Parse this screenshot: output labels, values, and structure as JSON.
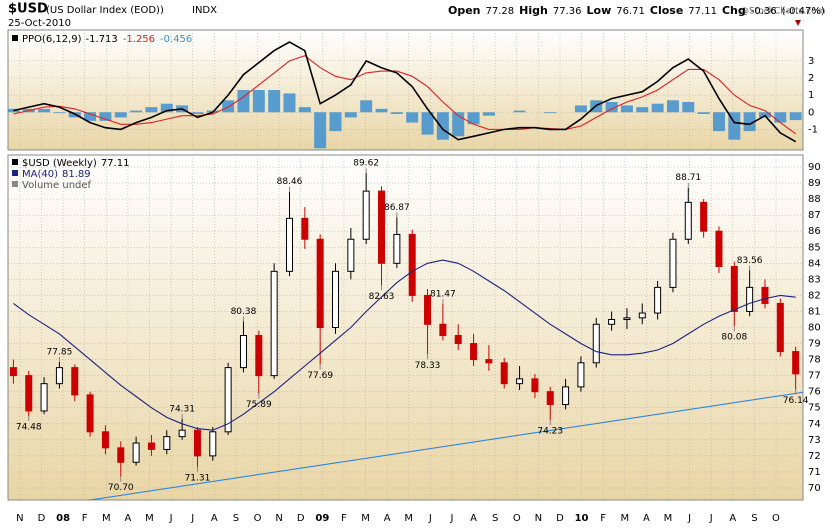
{
  "header": {
    "symbol": "$USD",
    "name": "(US Dollar Index (EOD))",
    "exchange": "INDX",
    "date": "25-Oct-2010",
    "watermark": "@StockCharts.com",
    "quote": [
      {
        "label": "Open",
        "value": 77.28
      },
      {
        "label": "High",
        "value": 77.36
      },
      {
        "label": "Low",
        "value": 76.71
      },
      {
        "label": "Close",
        "value": 77.11
      }
    ],
    "change": {
      "label": "Chg",
      "value": -0.36,
      "percent": {
        "value": -0.47,
        "label": "(-0.47%)"
      }
    }
  },
  "chart_data": [
    {
      "type": "candlestick",
      "legend": "$USD (Weekly)",
      "volume_legend": "Volume undef",
      "up_color": "#000000",
      "down_color": "#cc0000",
      "x": [
        -0.3,
        0.41,
        1.12,
        1.83,
        2.54,
        3.25,
        3.96,
        4.67,
        5.38,
        6.09,
        6.8,
        7.51,
        8.22,
        8.93,
        9.64,
        10.35,
        11.06,
        11.77,
        12.48,
        13.19,
        13.9,
        14.61,
        15.32,
        16.03,
        16.74,
        17.45,
        18.16,
        18.87,
        19.58,
        20.29,
        21,
        21.71,
        22.42,
        23.13,
        23.84,
        24.55,
        25.26,
        25.97,
        26.68,
        27.39,
        28.1,
        28.81,
        29.52,
        30.23,
        30.94,
        31.65,
        32.36,
        33.07,
        33.78,
        34.49,
        35.2,
        35.91
      ],
      "open": [
        77.5,
        77.0,
        74.8,
        76.5,
        77.5,
        75.8,
        73.5,
        72.5,
        71.6,
        72.8,
        72.4,
        73.2,
        73.6,
        72.0,
        73.5,
        77.5,
        79.5,
        77.0,
        83.5,
        86.8,
        85.5,
        80.0,
        83.5,
        85.5,
        88.5,
        84.0,
        85.8,
        82.0,
        80.2,
        79.5,
        79.0,
        78.0,
        77.8,
        76.5,
        76.8,
        76.0,
        75.2,
        76.3,
        77.8,
        80.2,
        80.5,
        80.6,
        80.9,
        82.5,
        85.5,
        87.8,
        86.0,
        83.8,
        81.0,
        82.5,
        81.5,
        78.5
      ],
      "high": [
        78.0,
        77.3,
        76.9,
        77.85,
        77.7,
        76.0,
        73.9,
        72.9,
        73.2,
        73.3,
        73.6,
        74.31,
        73.8,
        73.8,
        77.8,
        80.38,
        79.8,
        84.0,
        88.46,
        87.5,
        85.8,
        84.0,
        86.2,
        89.62,
        88.8,
        86.87,
        86.1,
        82.4,
        81.47,
        80.2,
        79.6,
        78.9,
        78.1,
        77.6,
        77.1,
        76.3,
        76.8,
        78.2,
        80.6,
        81.0,
        81.2,
        81.5,
        82.9,
        85.9,
        88.71,
        88.0,
        86.3,
        84.1,
        83.56,
        83.0,
        81.8,
        78.8
      ],
      "low": [
        76.5,
        74.48,
        74.6,
        76.2,
        75.4,
        73.2,
        72.1,
        70.7,
        71.4,
        72.0,
        72.1,
        73.0,
        71.31,
        71.7,
        73.3,
        77.2,
        75.89,
        76.8,
        83.2,
        84.9,
        77.69,
        79.6,
        83.0,
        85.2,
        82.63,
        83.7,
        81.6,
        78.33,
        79.2,
        78.6,
        77.6,
        77.3,
        76.2,
        76.1,
        75.6,
        74.23,
        74.9,
        76.0,
        77.5,
        79.8,
        79.9,
        80.2,
        80.5,
        82.2,
        85.2,
        85.6,
        83.4,
        80.08,
        80.7,
        81.2,
        78.2,
        76.14
      ],
      "close": [
        77.0,
        74.8,
        76.5,
        77.5,
        75.8,
        73.5,
        72.5,
        71.6,
        72.8,
        72.4,
        73.2,
        73.6,
        72.0,
        73.5,
        77.5,
        79.5,
        77.0,
        83.5,
        86.8,
        85.5,
        80.0,
        83.5,
        85.5,
        88.5,
        84.0,
        85.8,
        82.0,
        80.2,
        79.5,
        79.0,
        78.0,
        77.8,
        76.5,
        76.8,
        76.0,
        75.2,
        76.3,
        77.8,
        80.2,
        80.5,
        80.6,
        80.9,
        82.5,
        85.5,
        87.8,
        86.0,
        83.8,
        81.0,
        82.5,
        81.5,
        78.5,
        77.11
      ],
      "series": [
        {
          "name": "MA(40)",
          "color": "#1a237e",
          "values": [
            81.5,
            80.8,
            80.2,
            79.6,
            78.8,
            78.0,
            77.2,
            76.4,
            75.7,
            75.0,
            74.4,
            74.0,
            73.7,
            73.6,
            74.0,
            74.6,
            75.3,
            76.0,
            76.8,
            77.6,
            78.4,
            79.2,
            80.0,
            81.0,
            81.9,
            82.8,
            83.5,
            84.0,
            84.2,
            84.0,
            83.5,
            82.9,
            82.3,
            81.6,
            80.9,
            80.2,
            79.6,
            79.0,
            78.5,
            78.3,
            78.3,
            78.4,
            78.6,
            79.0,
            79.6,
            80.2,
            80.7,
            81.1,
            81.5,
            81.8,
            82.0,
            81.89
          ]
        }
      ],
      "trendline": {
        "x": [
          3.0,
          36.25
        ],
        "values": [
          69.2,
          75.96
        ],
        "color": "#2e86de"
      },
      "annotations": [
        {
          "x": 0.41,
          "value": 74.48,
          "position": "below"
        },
        {
          "x": 1.83,
          "value": 77.85,
          "position": "above"
        },
        {
          "x": 4.67,
          "value": 70.7,
          "label": "70.70",
          "position": "below"
        },
        {
          "x": 7.51,
          "value": 74.31,
          "position": "above"
        },
        {
          "x": 8.22,
          "value": 71.31,
          "position": "below"
        },
        {
          "x": 10.35,
          "value": 80.38,
          "position": "above"
        },
        {
          "x": 11.06,
          "value": 75.89,
          "position": "below"
        },
        {
          "x": 12.48,
          "value": 88.46,
          "position": "above"
        },
        {
          "x": 13.9,
          "value": 77.69,
          "position": "below"
        },
        {
          "x": 16.03,
          "value": 89.62,
          "position": "above"
        },
        {
          "x": 16.74,
          "value": 82.63,
          "position": "below"
        },
        {
          "x": 17.45,
          "value": 86.87,
          "position": "above"
        },
        {
          "x": 18.87,
          "value": 78.33,
          "position": "below"
        },
        {
          "x": 19.58,
          "value": 81.47,
          "position": "above"
        },
        {
          "x": 24.55,
          "value": 74.23,
          "position": "below"
        },
        {
          "x": 30.94,
          "value": 88.71,
          "position": "above"
        },
        {
          "x": 33.07,
          "value": 80.08,
          "position": "below"
        },
        {
          "x": 33.78,
          "value": 83.56,
          "position": "above"
        },
        {
          "x": 35.91,
          "value": 76.14,
          "position": "below"
        }
      ],
      "xlim": [
        -0.55,
        36.25
      ],
      "ylim": [
        69.25,
        90.75
      ],
      "yticks": [
        70,
        71,
        72,
        73,
        74,
        75,
        76,
        77,
        78,
        79,
        80,
        81,
        82,
        83,
        84,
        85,
        86,
        87,
        88,
        89,
        90
      ],
      "xticks": [
        {
          "value": 0,
          "label": "N"
        },
        {
          "value": 1,
          "label": "D"
        },
        {
          "value": 2,
          "label": "08"
        },
        {
          "value": 3,
          "label": "F"
        },
        {
          "value": 4,
          "label": "M"
        },
        {
          "value": 5,
          "label": "A"
        },
        {
          "value": 6,
          "label": "M"
        },
        {
          "value": 7,
          "label": "J"
        },
        {
          "value": 8,
          "label": "J"
        },
        {
          "value": 9,
          "label": "A"
        },
        {
          "value": 10,
          "label": "S"
        },
        {
          "value": 11,
          "label": "O"
        },
        {
          "value": 12,
          "label": "N"
        },
        {
          "value": 13,
          "label": "D"
        },
        {
          "value": 14,
          "label": "09"
        },
        {
          "value": 15,
          "label": "F"
        },
        {
          "value": 16,
          "label": "M"
        },
        {
          "value": 17,
          "label": "A"
        },
        {
          "value": 18,
          "label": "M"
        },
        {
          "value": 19,
          "label": "J"
        },
        {
          "value": 20,
          "label": "J"
        },
        {
          "value": 21,
          "label": "A"
        },
        {
          "value": 22,
          "label": "S"
        },
        {
          "value": 23,
          "label": "O"
        },
        {
          "value": 24,
          "label": "N"
        },
        {
          "value": 25,
          "label": "D"
        },
        {
          "value": 26,
          "label": "10"
        },
        {
          "value": 27,
          "label": "F"
        },
        {
          "value": 28,
          "label": "M"
        },
        {
          "value": 29,
          "label": "A"
        },
        {
          "value": 30,
          "label": "M"
        },
        {
          "value": 31,
          "label": "J"
        },
        {
          "value": 32,
          "label": "J"
        },
        {
          "value": 33,
          "label": "A"
        },
        {
          "value": 34,
          "label": "S"
        },
        {
          "value": 35,
          "label": "O"
        }
      ],
      "grid": true
    },
    {
      "type": "ppo",
      "legend": "PPO(6,12,9)",
      "series": [
        {
          "name": "PPO",
          "color": "#000000",
          "values": [
            0.1,
            0.3,
            0.5,
            0.3,
            -0.1,
            -0.6,
            -0.9,
            -1.0,
            -0.6,
            -0.3,
            0.1,
            0.2,
            -0.3,
            0.0,
            1.0,
            2.2,
            2.9,
            3.6,
            4.1,
            3.6,
            0.5,
            1.0,
            1.6,
            3.0,
            2.6,
            2.3,
            1.5,
            0.2,
            -1.0,
            -1.6,
            -1.4,
            -1.2,
            -1.0,
            -0.9,
            -0.9,
            -1.0,
            -1.0,
            -0.4,
            0.4,
            0.8,
            1.0,
            1.2,
            1.8,
            2.6,
            3.1,
            2.4,
            0.8,
            -0.6,
            -0.7,
            -0.2,
            -1.2,
            -1.713
          ]
        },
        {
          "name": "Signal",
          "color": "#e02020",
          "values": [
            -0.1,
            0.1,
            0.3,
            0.35,
            0.2,
            -0.1,
            -0.4,
            -0.7,
            -0.7,
            -0.6,
            -0.4,
            -0.2,
            -0.2,
            -0.1,
            0.3,
            0.9,
            1.6,
            2.3,
            3.0,
            3.3,
            2.6,
            2.1,
            1.9,
            2.3,
            2.4,
            2.4,
            2.1,
            1.5,
            0.6,
            -0.2,
            -0.7,
            -1.0,
            -1.0,
            -1.0,
            -0.9,
            -0.95,
            -1.0,
            -0.8,
            -0.3,
            0.2,
            0.6,
            0.9,
            1.3,
            1.9,
            2.5,
            2.5,
            1.9,
            1.0,
            0.4,
            0.1,
            -0.6,
            -1.256
          ]
        },
        {
          "name": "Histogram",
          "color": "#3d8fd1",
          "values": [
            0.2,
            0.2,
            0.2,
            -0.05,
            -0.3,
            -0.5,
            -0.5,
            -0.3,
            0.1,
            0.3,
            0.5,
            0.4,
            -0.1,
            0.1,
            0.7,
            1.3,
            1.3,
            1.3,
            1.1,
            0.3,
            -2.1,
            -1.1,
            -0.3,
            0.7,
            0.2,
            -0.1,
            -0.6,
            -1.3,
            -1.6,
            -1.4,
            -0.7,
            -0.2,
            0,
            0.1,
            0,
            -0.05,
            0,
            0.4,
            0.7,
            0.6,
            0.4,
            0.3,
            0.5,
            0.7,
            0.6,
            -0.1,
            -1.1,
            -1.6,
            -1.1,
            -0.3,
            -0.6,
            -0.456
          ]
        }
      ],
      "ylim": [
        -2.2,
        4.8
      ],
      "yticks": [
        3,
        2,
        1,
        0,
        -1
      ],
      "grid": true
    }
  ]
}
